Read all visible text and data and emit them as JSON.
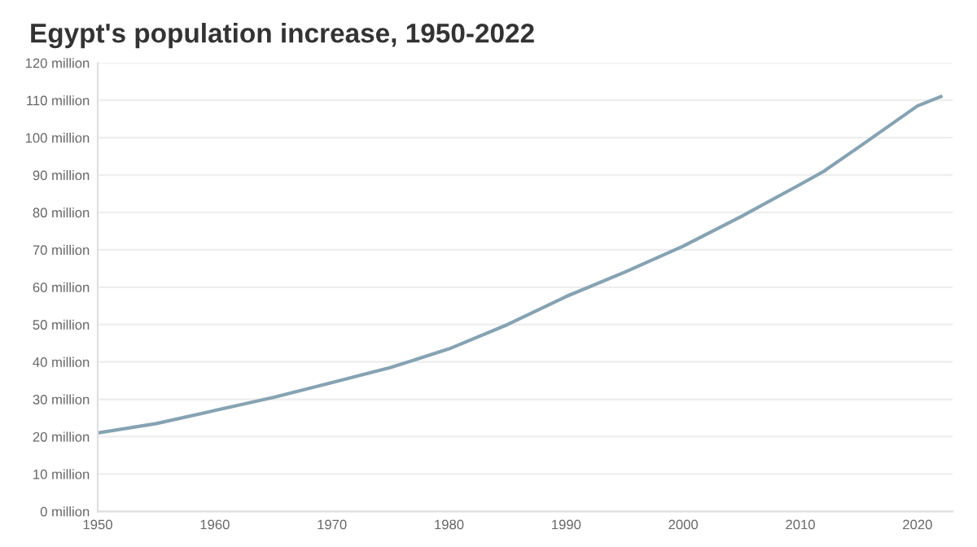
{
  "chart_data": {
    "type": "line",
    "title": "Egypt's population increase, 1950-2022",
    "x": [
      1950,
      1955,
      1960,
      1965,
      1970,
      1975,
      1980,
      1985,
      1990,
      1995,
      2000,
      2005,
      2010,
      2012,
      2015,
      2020,
      2022
    ],
    "series": [
      {
        "color": "#86a3b3",
        "values": [
          21,
          23.5,
          27,
          30.5,
          34.5,
          38.5,
          43.5,
          50,
          57.5,
          64,
          71,
          79,
          87.5,
          91,
          97.5,
          108.5,
          111
        ]
      }
    ],
    "xlim": [
      1950,
      2023
    ],
    "xticks": [
      1950,
      1960,
      1970,
      1980,
      1990,
      2000,
      2010,
      2020
    ],
    "ylim": [
      0,
      120
    ],
    "yticks": [
      {
        "value": 0,
        "label": "0 million"
      },
      {
        "value": 10,
        "label": "10 million"
      },
      {
        "value": 20,
        "label": "20 million"
      },
      {
        "value": 30,
        "label": "30 million"
      },
      {
        "value": 40,
        "label": "40 million"
      },
      {
        "value": 50,
        "label": "50 million"
      },
      {
        "value": 60,
        "label": "60 million"
      },
      {
        "value": 70,
        "label": "70 million"
      },
      {
        "value": 80,
        "label": "80 million"
      },
      {
        "value": 90,
        "label": "90 million"
      },
      {
        "value": 100,
        "label": "100 million"
      },
      {
        "value": 110,
        "label": "110 million"
      },
      {
        "value": 120,
        "label": "120 million"
      }
    ],
    "grid": "y",
    "legend": false
  }
}
